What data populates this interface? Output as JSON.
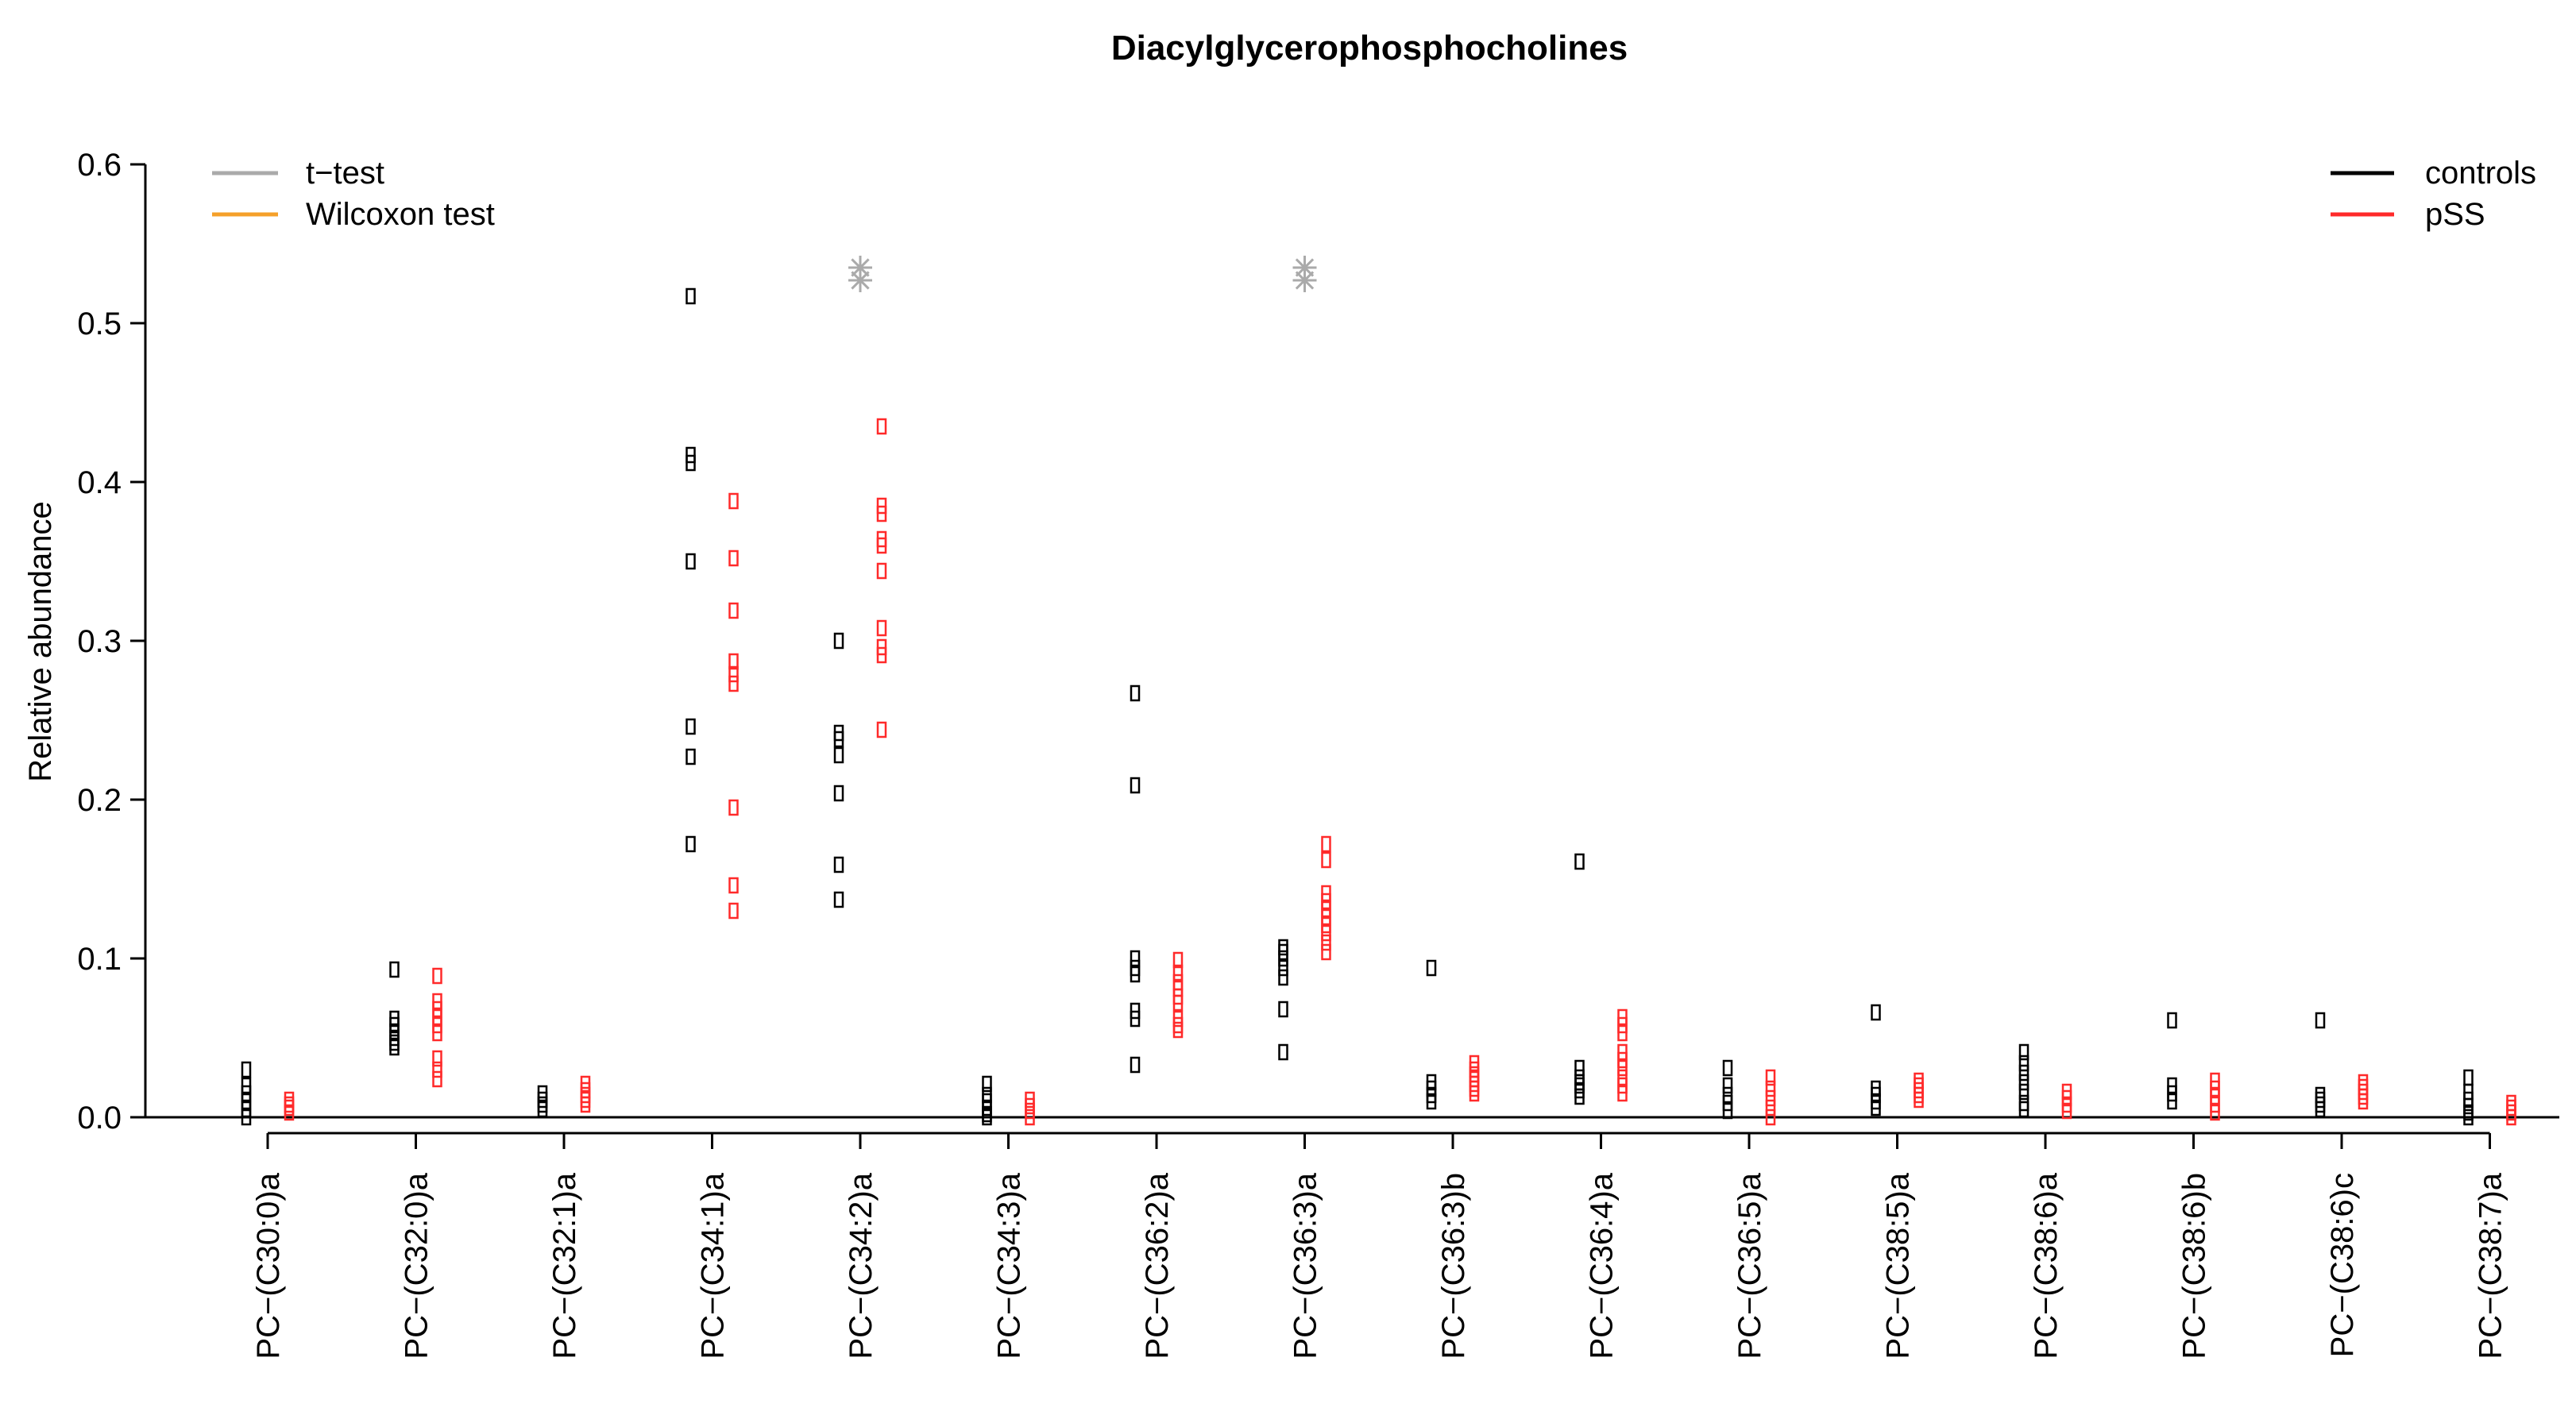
{
  "chart_data": {
    "type": "scatter",
    "title": "Diacylglycerophosphocholines",
    "xlabel": "",
    "ylabel": "Relative abundance",
    "ylim": [
      0,
      0.6
    ],
    "yticks": [
      "0.0",
      "0.1",
      "0.2",
      "0.3",
      "0.4",
      "0.5",
      "0.6"
    ],
    "grid": false,
    "categories": [
      "PC−(C30:0)a",
      "PC−(C32:0)a",
      "PC−(C32:1)a",
      "PC−(C34:1)a",
      "PC−(C34:2)a",
      "PC−(C34:3)a",
      "PC−(C36:2)a",
      "PC−(C36:3)a",
      "PC−(C36:3)b",
      "PC−(C36:4)a",
      "PC−(C36:5)a",
      "PC−(C38:5)a",
      "PC−(C38:6)a",
      "PC−(C38:6)b",
      "PC−(C38:6)c",
      "PC−(C38:7)a"
    ],
    "series": [
      {
        "name": "controls",
        "color": "#000000",
        "values": [
          [
            0.03,
            0.02,
            0.015,
            0.01,
            0.005,
            0.0
          ],
          [
            0.093,
            0.062,
            0.058,
            0.054,
            0.05,
            0.047,
            0.044
          ],
          [
            0.015,
            0.011,
            0.008,
            0.005
          ],
          [
            0.517,
            0.417,
            0.412,
            0.35,
            0.246,
            0.227,
            0.172
          ],
          [
            0.3,
            0.242,
            0.238,
            0.228,
            0.204,
            0.159,
            0.137
          ],
          [
            0.021,
            0.014,
            0.01,
            0.006,
            0.002,
            0.0
          ],
          [
            0.267,
            0.209,
            0.1,
            0.094,
            0.09,
            0.067,
            0.062,
            0.033
          ],
          [
            0.107,
            0.104,
            0.1,
            0.094,
            0.088,
            0.068,
            0.041
          ],
          [
            0.094,
            0.022,
            0.018,
            0.014,
            0.01
          ],
          [
            0.161,
            0.031,
            0.025,
            0.022,
            0.02,
            0.017,
            0.013
          ],
          [
            0.031,
            0.02,
            0.014,
            0.009,
            0.004
          ],
          [
            0.066,
            0.018,
            0.014,
            0.01,
            0.006
          ],
          [
            0.041,
            0.034,
            0.028,
            0.022,
            0.016,
            0.009,
            0.005
          ],
          [
            0.061,
            0.02,
            0.015,
            0.01
          ],
          [
            0.061,
            0.014,
            0.011,
            0.008,
            0.005
          ],
          [
            0.025,
            0.016,
            0.011,
            0.007,
            0.003,
            0.0
          ]
        ]
      },
      {
        "name": "pSS",
        "color": "#ff2a2a",
        "values": [
          [
            0.011,
            0.008,
            0.006,
            0.003
          ],
          [
            0.089,
            0.073,
            0.068,
            0.063,
            0.058,
            0.053,
            0.037,
            0.03,
            0.024
          ],
          [
            0.021,
            0.017,
            0.014,
            0.011,
            0.008
          ],
          [
            0.388,
            0.352,
            0.319,
            0.287,
            0.279,
            0.273,
            0.195,
            0.146,
            0.13
          ],
          [
            0.435,
            0.385,
            0.38,
            0.364,
            0.36,
            0.344,
            0.308,
            0.296,
            0.291,
            0.244
          ],
          [
            0.011,
            0.007,
            0.004,
            0.0
          ],
          [
            0.099,
            0.091,
            0.085,
            0.081,
            0.076,
            0.072,
            0.062,
            0.058,
            0.055
          ],
          [
            0.172,
            0.162,
            0.141,
            0.136,
            0.131,
            0.126,
            0.121,
            0.116,
            0.11,
            0.104
          ],
          [
            0.034,
            0.03,
            0.027,
            0.024,
            0.021,
            0.018,
            0.015
          ],
          [
            0.063,
            0.058,
            0.053,
            0.041,
            0.036,
            0.031,
            0.025,
            0.02,
            0.015
          ],
          [
            0.025,
            0.018,
            0.012,
            0.006,
            0.0
          ],
          [
            0.023,
            0.02,
            0.017,
            0.014,
            0.011
          ],
          [
            0.016,
            0.012,
            0.008,
            0.004
          ],
          [
            0.023,
            0.018,
            0.013,
            0.008,
            0.003
          ],
          [
            0.022,
            0.019,
            0.016,
            0.013,
            0.01
          ],
          [
            0.009,
            0.006,
            0.003,
            0.0
          ]
        ]
      }
    ],
    "significance": [
      {
        "category_index": 4,
        "test": "t−test",
        "color": "#aaaaaa",
        "values": [
          0.535,
          0.527
        ]
      },
      {
        "category_index": 7,
        "test": "t−test",
        "color": "#aaaaaa",
        "values": [
          0.535,
          0.527
        ]
      }
    ],
    "legend_tests": {
      "position": "top-left",
      "entries": [
        {
          "label": "t−test",
          "color": "#aaaaaa"
        },
        {
          "label": "Wilcoxon test",
          "color": "#f5a02a"
        }
      ]
    },
    "legend_groups": {
      "position": "top-right",
      "entries": [
        {
          "label": "controls",
          "color": "#000000"
        },
        {
          "label": "pSS",
          "color": "#ff2a2a"
        }
      ]
    }
  }
}
